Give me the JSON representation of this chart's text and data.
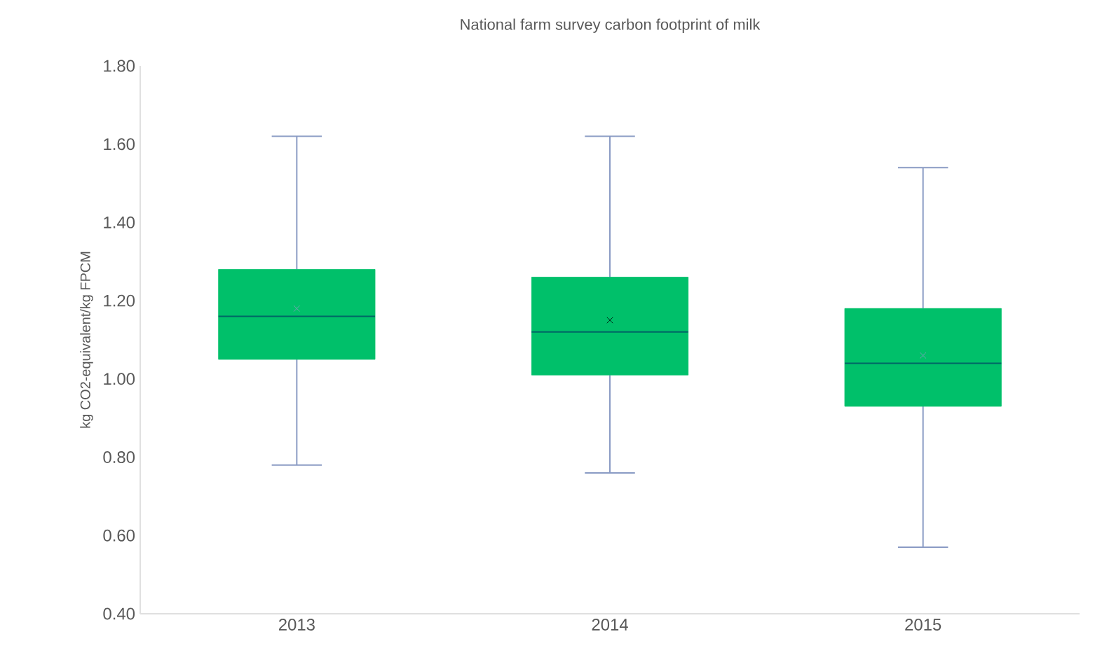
{
  "chart_data": {
    "type": "box",
    "title": "National farm survey carbon footprint of milk",
    "ylabel": "kg CO2-equivalent/kg FPCM",
    "categories": [
      "2013",
      "2014",
      "2015"
    ],
    "boxes": [
      {
        "low": 0.78,
        "q1": 1.05,
        "median": 1.16,
        "q3": 1.28,
        "high": 1.62,
        "mean": 1.18
      },
      {
        "low": 0.76,
        "q1": 1.01,
        "median": 1.12,
        "q3": 1.26,
        "high": 1.62,
        "mean": 1.15
      },
      {
        "low": 0.57,
        "q1": 0.93,
        "median": 1.04,
        "q3": 1.18,
        "high": 1.54,
        "mean": 1.06
      }
    ],
    "color": "#00c06a",
    "ylim": [
      0.4,
      1.8
    ],
    "yticks": [
      {
        "value": 0.4,
        "label": "0.40"
      },
      {
        "value": 0.6,
        "label": "0.60"
      },
      {
        "value": 0.8,
        "label": "0.80"
      },
      {
        "value": 1.0,
        "label": "1.00"
      },
      {
        "value": 1.2,
        "label": "1.20"
      },
      {
        "value": 1.4,
        "label": "1.40"
      },
      {
        "value": 1.6,
        "label": "1.60"
      },
      {
        "value": 1.8,
        "label": "1.80"
      }
    ]
  }
}
